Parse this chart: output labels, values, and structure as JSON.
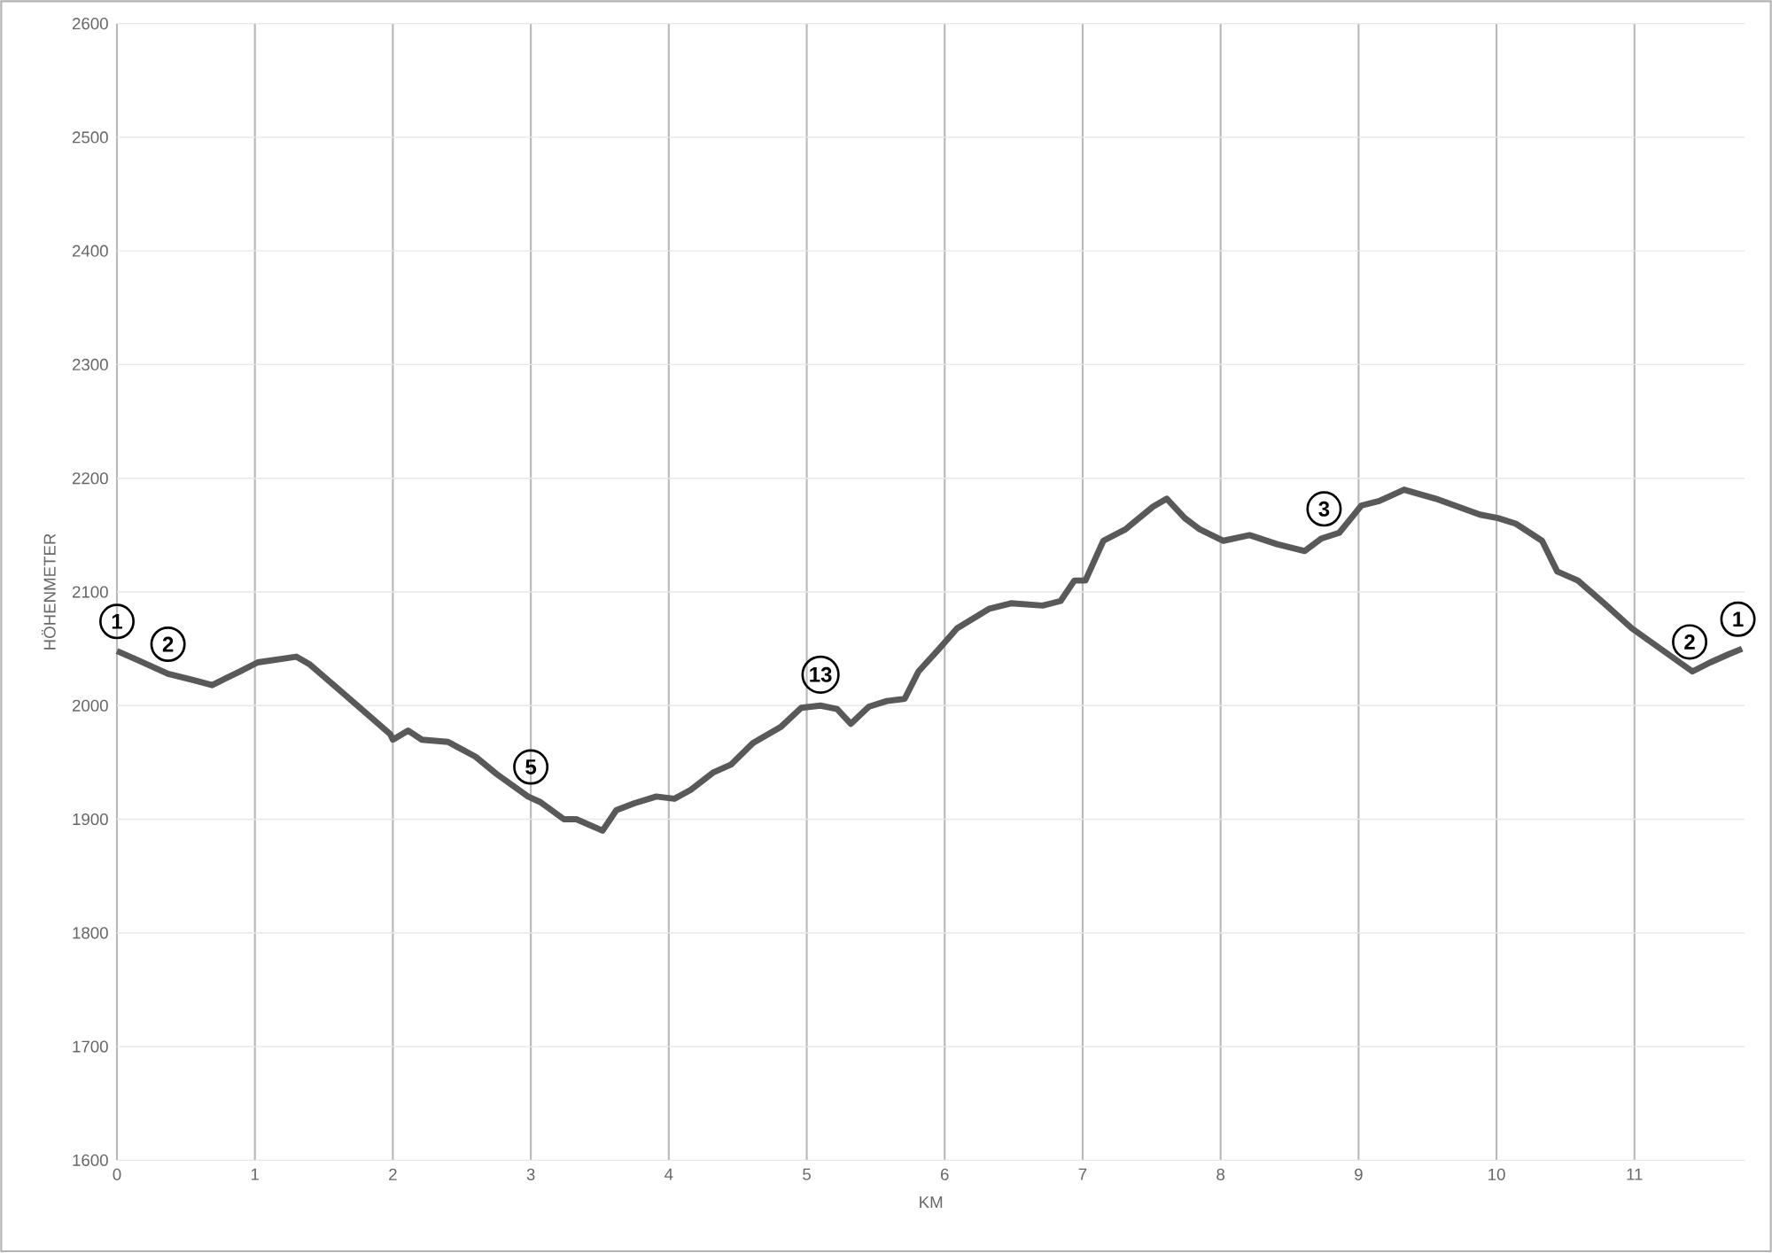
{
  "chart_data": {
    "type": "line",
    "xlabel": "KM",
    "ylabel": "HÖHENMETER",
    "x": [
      0,
      0.15,
      0.37,
      0.57,
      0.69,
      0.89,
      1.02,
      1.3,
      1.4,
      1.59,
      1.79,
      1.98,
      2.0,
      2.11,
      2.21,
      2.4,
      2.6,
      2.75,
      2.98,
      3.07,
      3.24,
      3.33,
      3.52,
      3.62,
      3.75,
      3.91,
      4.04,
      4.16,
      4.32,
      4.45,
      4.61,
      4.81,
      4.96,
      5.1,
      5.22,
      5.32,
      5.45,
      5.58,
      5.71,
      5.81,
      5.96,
      6.09,
      6.32,
      6.48,
      6.71,
      6.84,
      6.94,
      7.02,
      7.15,
      7.31,
      7.51,
      7.61,
      7.74,
      7.85,
      8.02,
      8.21,
      8.41,
      8.61,
      8.73,
      8.86,
      9.02,
      9.15,
      9.33,
      9.56,
      9.88,
      10.01,
      10.14,
      10.33,
      10.44,
      10.59,
      10.78,
      10.98,
      11.42,
      11.55,
      11.68,
      11.78
    ],
    "series": [
      {
        "color": "#595959",
        "values": [
          2048,
          2040,
          2028,
          2022,
          2018,
          2030,
          2038,
          2043,
          2036,
          2016,
          1995,
          1975,
          1970,
          1978,
          1970,
          1968,
          1955,
          1940,
          1920,
          1915,
          1900,
          1900,
          1890,
          1908,
          1914,
          1920,
          1918,
          1926,
          1941,
          1948,
          1967,
          1981,
          1998,
          2000,
          1997,
          1984,
          1999,
          2004,
          2006,
          2030,
          2050,
          2068,
          2085,
          2090,
          2088,
          2092,
          2110,
          2110,
          2145,
          2155,
          2175,
          2182,
          2165,
          2155,
          2145,
          2150,
          2142,
          2136,
          2147,
          2152,
          2176,
          2180,
          2190,
          2182,
          2168,
          2165,
          2160,
          2145,
          2118,
          2110,
          2090,
          2068,
          2030,
          2038,
          2045,
          2050
        ]
      }
    ],
    "xlim": [
      0,
      11.8
    ],
    "xticks": [
      0,
      1,
      2,
      3,
      4,
      5,
      6,
      7,
      8,
      9,
      10,
      11
    ],
    "ylim": [
      1600,
      2600
    ],
    "yticks": [
      1600,
      1700,
      1800,
      1900,
      2000,
      2100,
      2200,
      2300,
      2400,
      2500,
      2600
    ],
    "grid": true,
    "marker": "none",
    "line_style": "solid",
    "annotations": [
      {
        "text": "1",
        "x": 0,
        "y": 2048
      },
      {
        "text": "2",
        "x": 0.37,
        "y": 2028
      },
      {
        "text": "5",
        "x": 3.0,
        "y": 1920
      },
      {
        "text": "13",
        "x": 5.1,
        "y": 2000
      },
      {
        "text": "3",
        "x": 8.75,
        "y": 2147
      },
      {
        "text": "2",
        "x": 11.4,
        "y": 2030
      },
      {
        "text": "1",
        "x": 11.75,
        "y": 2050
      }
    ]
  }
}
